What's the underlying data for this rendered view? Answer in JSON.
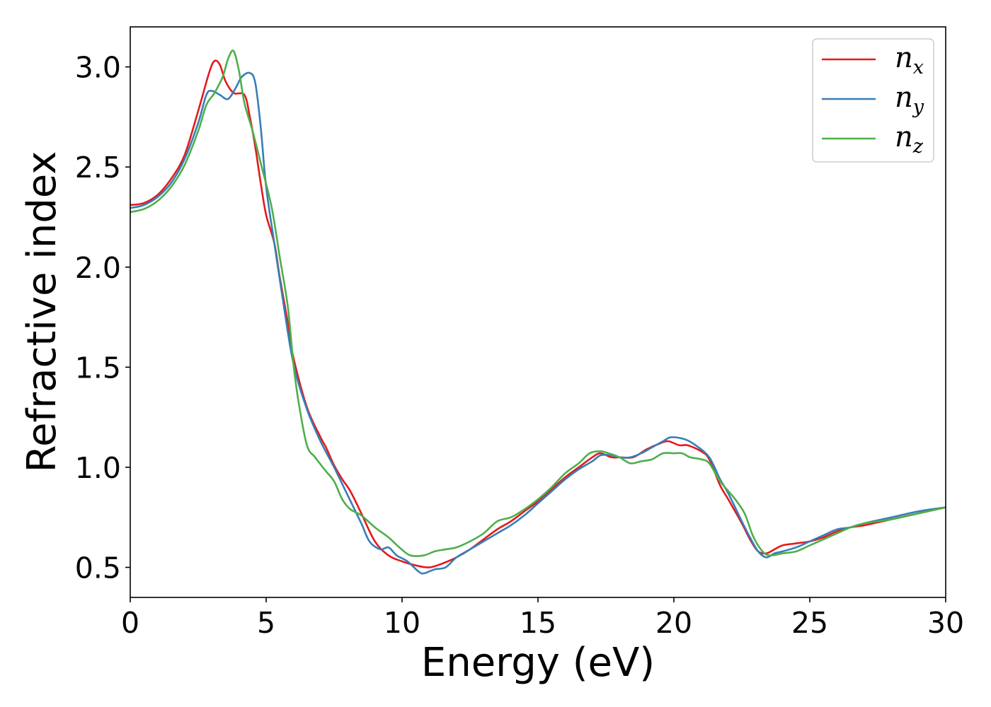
{
  "chart_data": {
    "type": "line",
    "title": "",
    "xlabel": "Energy (eV)",
    "ylabel": "Refractive index",
    "xlim": [
      0,
      30
    ],
    "ylim": [
      0.35,
      3.2
    ],
    "xticks": [
      0,
      5,
      10,
      15,
      20,
      25,
      30
    ],
    "xtick_labels": [
      "0",
      "5",
      "10",
      "15",
      "20",
      "25",
      "30"
    ],
    "yticks": [
      0.5,
      1.0,
      1.5,
      2.0,
      2.5,
      3.0
    ],
    "ytick_labels": [
      "0.5",
      "1.0",
      "1.5",
      "2.0",
      "2.5",
      "3.0"
    ],
    "grid": false,
    "legend_position": "top-right",
    "series": [
      {
        "name": "n_x",
        "label_base": "n",
        "label_sub": "x",
        "color": "#e41a1c",
        "points": [
          [
            0,
            2.31
          ],
          [
            0.5,
            2.32
          ],
          [
            1,
            2.36
          ],
          [
            1.5,
            2.44
          ],
          [
            2,
            2.56
          ],
          [
            2.5,
            2.78
          ],
          [
            2.9,
            2.97
          ],
          [
            3.1,
            3.03
          ],
          [
            3.3,
            3.01
          ],
          [
            3.5,
            2.93
          ],
          [
            3.8,
            2.87
          ],
          [
            4.2,
            2.86
          ],
          [
            4.4,
            2.75
          ],
          [
            4.6,
            2.6
          ],
          [
            4.8,
            2.42
          ],
          [
            5,
            2.26
          ],
          [
            5.3,
            2.12
          ],
          [
            5.5,
            1.95
          ],
          [
            5.8,
            1.72
          ],
          [
            6,
            1.55
          ],
          [
            6.5,
            1.3
          ],
          [
            7,
            1.15
          ],
          [
            7.2,
            1.1
          ],
          [
            7.5,
            1.01
          ],
          [
            7.8,
            0.94
          ],
          [
            8.1,
            0.88
          ],
          [
            8.5,
            0.77
          ],
          [
            9,
            0.63
          ],
          [
            9.5,
            0.56
          ],
          [
            10,
            0.53
          ],
          [
            10.5,
            0.51
          ],
          [
            11,
            0.5
          ],
          [
            11.5,
            0.52
          ],
          [
            12,
            0.55
          ],
          [
            12.5,
            0.59
          ],
          [
            13,
            0.64
          ],
          [
            13.5,
            0.69
          ],
          [
            14,
            0.73
          ],
          [
            14.5,
            0.78
          ],
          [
            15,
            0.83
          ],
          [
            15.5,
            0.89
          ],
          [
            16,
            0.95
          ],
          [
            16.5,
            1.0
          ],
          [
            17,
            1.05
          ],
          [
            17.3,
            1.07
          ],
          [
            17.7,
            1.05
          ],
          [
            18,
            1.05
          ],
          [
            18.5,
            1.05
          ],
          [
            19,
            1.09
          ],
          [
            19.5,
            1.12
          ],
          [
            19.8,
            1.13
          ],
          [
            20.2,
            1.11
          ],
          [
            20.5,
            1.11
          ],
          [
            21,
            1.08
          ],
          [
            21.3,
            1.04
          ],
          [
            21.7,
            0.91
          ],
          [
            22,
            0.84
          ],
          [
            22.5,
            0.72
          ],
          [
            22.8,
            0.64
          ],
          [
            23.1,
            0.58
          ],
          [
            23.4,
            0.57
          ],
          [
            23.7,
            0.59
          ],
          [
            24,
            0.61
          ],
          [
            24.5,
            0.62
          ],
          [
            25,
            0.63
          ],
          [
            25.5,
            0.65
          ],
          [
            26,
            0.68
          ],
          [
            26.5,
            0.7
          ],
          [
            27,
            0.71
          ],
          [
            28,
            0.74
          ],
          [
            29,
            0.77
          ],
          [
            30,
            0.8
          ]
        ]
      },
      {
        "name": "n_y",
        "label_base": "n",
        "label_sub": "y",
        "color": "#377eb8",
        "points": [
          [
            0,
            2.295
          ],
          [
            0.5,
            2.31
          ],
          [
            1,
            2.35
          ],
          [
            1.5,
            2.42
          ],
          [
            2,
            2.54
          ],
          [
            2.5,
            2.72
          ],
          [
            2.8,
            2.86
          ],
          [
            3.0,
            2.88
          ],
          [
            3.3,
            2.86
          ],
          [
            3.6,
            2.84
          ],
          [
            3.9,
            2.9
          ],
          [
            4.1,
            2.95
          ],
          [
            4.4,
            2.97
          ],
          [
            4.6,
            2.92
          ],
          [
            4.8,
            2.7
          ],
          [
            5,
            2.4
          ],
          [
            5.3,
            2.12
          ],
          [
            5.6,
            1.85
          ],
          [
            6,
            1.52
          ],
          [
            6.5,
            1.29
          ],
          [
            7,
            1.13
          ],
          [
            7.5,
            1.0
          ],
          [
            8,
            0.86
          ],
          [
            8.5,
            0.72
          ],
          [
            8.8,
            0.63
          ],
          [
            9.2,
            0.59
          ],
          [
            9.5,
            0.6
          ],
          [
            9.8,
            0.56
          ],
          [
            10.2,
            0.53
          ],
          [
            10.6,
            0.48
          ],
          [
            10.8,
            0.47
          ],
          [
            11.2,
            0.49
          ],
          [
            11.6,
            0.5
          ],
          [
            12,
            0.55
          ],
          [
            12.5,
            0.59
          ],
          [
            13,
            0.63
          ],
          [
            13.5,
            0.67
          ],
          [
            14,
            0.71
          ],
          [
            14.5,
            0.76
          ],
          [
            15,
            0.82
          ],
          [
            15.5,
            0.88
          ],
          [
            16,
            0.94
          ],
          [
            16.5,
            0.99
          ],
          [
            17,
            1.03
          ],
          [
            17.3,
            1.06
          ],
          [
            17.7,
            1.06
          ],
          [
            18,
            1.05
          ],
          [
            18.4,
            1.05
          ],
          [
            18.8,
            1.07
          ],
          [
            19.2,
            1.1
          ],
          [
            19.6,
            1.13
          ],
          [
            19.9,
            1.15
          ],
          [
            20.4,
            1.14
          ],
          [
            20.8,
            1.11
          ],
          [
            21.3,
            1.05
          ],
          [
            21.7,
            0.94
          ],
          [
            22,
            0.87
          ],
          [
            22.5,
            0.73
          ],
          [
            22.8,
            0.65
          ],
          [
            23.1,
            0.58
          ],
          [
            23.4,
            0.55
          ],
          [
            23.7,
            0.57
          ],
          [
            24,
            0.58
          ],
          [
            24.5,
            0.6
          ],
          [
            25,
            0.63
          ],
          [
            25.5,
            0.66
          ],
          [
            26,
            0.69
          ],
          [
            26.5,
            0.7
          ],
          [
            27,
            0.72
          ],
          [
            28,
            0.75
          ],
          [
            29,
            0.78
          ],
          [
            30,
            0.8
          ]
        ]
      },
      {
        "name": "n_z",
        "label_base": "n",
        "label_sub": "z",
        "color": "#4daf4a",
        "points": [
          [
            0,
            2.275
          ],
          [
            0.5,
            2.29
          ],
          [
            1,
            2.33
          ],
          [
            1.5,
            2.4
          ],
          [
            2,
            2.51
          ],
          [
            2.5,
            2.68
          ],
          [
            2.8,
            2.81
          ],
          [
            3.1,
            2.87
          ],
          [
            3.4,
            2.95
          ],
          [
            3.6,
            3.04
          ],
          [
            3.8,
            3.08
          ],
          [
            4.0,
            2.98
          ],
          [
            4.2,
            2.82
          ],
          [
            4.5,
            2.68
          ],
          [
            4.8,
            2.52
          ],
          [
            5.2,
            2.3
          ],
          [
            5.5,
            2.05
          ],
          [
            5.8,
            1.8
          ],
          [
            6,
            1.52
          ],
          [
            6.2,
            1.32
          ],
          [
            6.5,
            1.11
          ],
          [
            6.8,
            1.05
          ],
          [
            7.2,
            0.98
          ],
          [
            7.5,
            0.93
          ],
          [
            7.8,
            0.84
          ],
          [
            8.1,
            0.79
          ],
          [
            8.5,
            0.76
          ],
          [
            9,
            0.7
          ],
          [
            9.5,
            0.65
          ],
          [
            9.9,
            0.6
          ],
          [
            10.3,
            0.56
          ],
          [
            10.8,
            0.56
          ],
          [
            11.2,
            0.58
          ],
          [
            11.6,
            0.59
          ],
          [
            12,
            0.6
          ],
          [
            12.5,
            0.63
          ],
          [
            13,
            0.67
          ],
          [
            13.5,
            0.73
          ],
          [
            14,
            0.75
          ],
          [
            14.5,
            0.79
          ],
          [
            15,
            0.84
          ],
          [
            15.5,
            0.9
          ],
          [
            16,
            0.97
          ],
          [
            16.5,
            1.02
          ],
          [
            16.9,
            1.07
          ],
          [
            17.3,
            1.08
          ],
          [
            17.6,
            1.07
          ],
          [
            18,
            1.05
          ],
          [
            18.4,
            1.02
          ],
          [
            18.8,
            1.03
          ],
          [
            19.2,
            1.04
          ],
          [
            19.6,
            1.07
          ],
          [
            20,
            1.07
          ],
          [
            20.3,
            1.07
          ],
          [
            20.6,
            1.05
          ],
          [
            21,
            1.04
          ],
          [
            21.3,
            1.02
          ],
          [
            21.7,
            0.93
          ],
          [
            22.2,
            0.85
          ],
          [
            22.6,
            0.77
          ],
          [
            22.9,
            0.66
          ],
          [
            23.2,
            0.59
          ],
          [
            23.5,
            0.56
          ],
          [
            24,
            0.57
          ],
          [
            24.5,
            0.58
          ],
          [
            25,
            0.61
          ],
          [
            25.5,
            0.64
          ],
          [
            26,
            0.67
          ],
          [
            26.5,
            0.7
          ],
          [
            27,
            0.72
          ],
          [
            28,
            0.74
          ],
          [
            29,
            0.77
          ],
          [
            30,
            0.8
          ]
        ]
      }
    ]
  }
}
